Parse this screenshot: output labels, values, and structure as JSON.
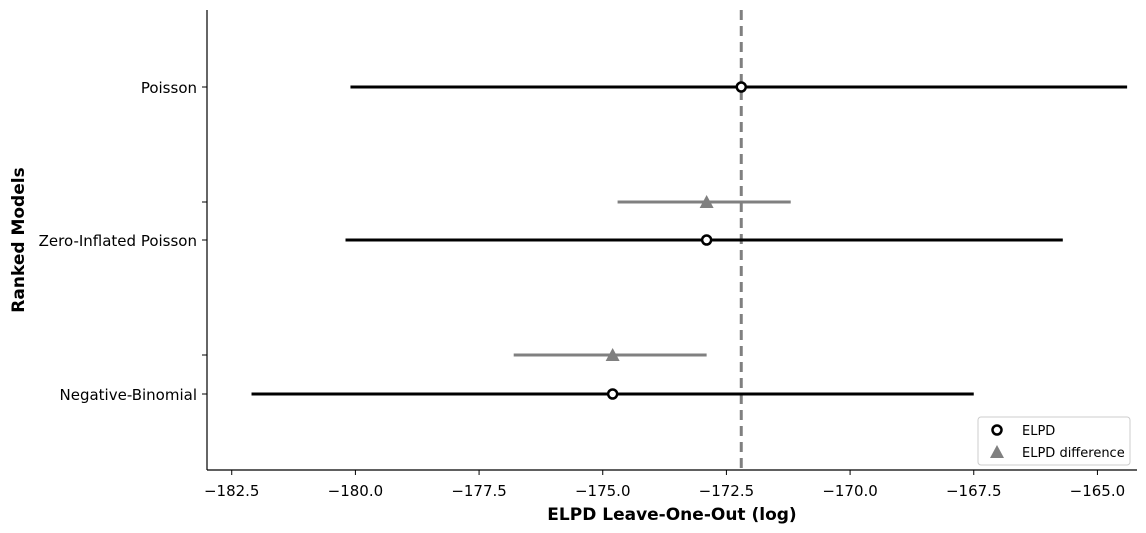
{
  "chart_data": {
    "type": "scatter",
    "title": "",
    "xlabel": "ELPD Leave-One-Out (log)",
    "ylabel": "Ranked Models",
    "xlim": [
      -183.0,
      -164.2
    ],
    "xticks": [
      -182.5,
      -180.0,
      -177.5,
      -175.0,
      -172.5,
      -170.0,
      -167.5,
      -165.0
    ],
    "xtick_labels": [
      "−182.5",
      "−180.0",
      "−177.5",
      "−175.0",
      "−172.5",
      "−170.0",
      "−167.5",
      "−165.0"
    ],
    "models": [
      "Poisson",
      "Zero-Inflated Poisson",
      "Negative-Binomial"
    ],
    "elpd": [
      {
        "model": "Poisson",
        "value": -172.2,
        "low": -180.1,
        "high": -164.4
      },
      {
        "model": "Zero-Inflated Poisson",
        "value": -172.9,
        "low": -180.2,
        "high": -165.7
      },
      {
        "model": "Negative-Binomial",
        "value": -174.8,
        "low": -182.1,
        "high": -167.5
      }
    ],
    "elpd_difference": [
      {
        "model": "Zero-Inflated Poisson",
        "value": -172.9,
        "low": -174.7,
        "high": -171.2
      },
      {
        "model": "Negative-Binomial",
        "value": -174.8,
        "low": -176.8,
        "high": -172.9
      }
    ],
    "reference_line": -172.2,
    "legend": {
      "position": "lower-right",
      "entries": [
        {
          "label": "ELPD",
          "marker": "open-circle",
          "color": "#000000"
        },
        {
          "label": "ELPD difference",
          "marker": "triangle",
          "color": "#808080"
        }
      ]
    },
    "colors": {
      "elpd": "#000000",
      "difference": "#808080",
      "reference": "#808080"
    }
  }
}
